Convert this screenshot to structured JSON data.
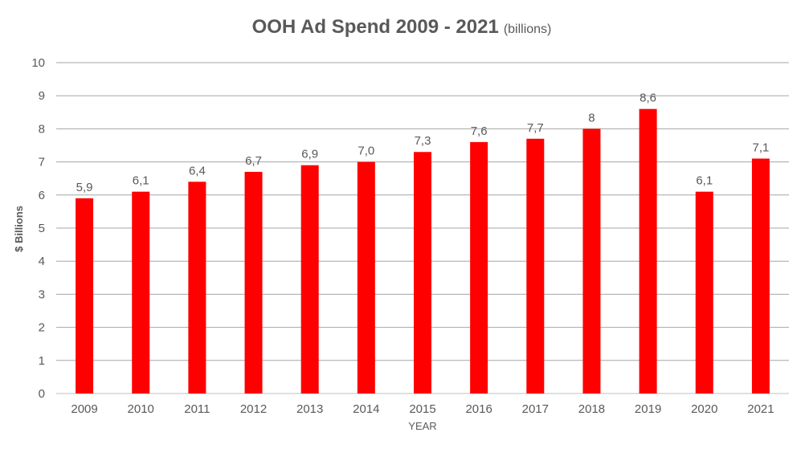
{
  "chart_data": {
    "type": "bar",
    "title": "OOH Ad Spend 2009 - 2021",
    "subtitle": "(billions)",
    "xlabel": "YEAR",
    "ylabel": "$ Billions",
    "ylim": [
      0,
      10
    ],
    "yticks": [
      "0",
      "1",
      "2",
      "3",
      "4",
      "5",
      "6",
      "7",
      "8",
      "9",
      "10"
    ],
    "grid": true,
    "categories": [
      "2009",
      "2010",
      "2011",
      "2012",
      "2013",
      "2014",
      "2015",
      "2016",
      "2017",
      "2018",
      "2019",
      "2020",
      "2021"
    ],
    "values": [
      5.9,
      6.1,
      6.4,
      6.7,
      6.9,
      7.0,
      7.3,
      7.6,
      7.7,
      8.0,
      8.6,
      6.1,
      7.1
    ],
    "data_labels": [
      "5,9",
      "6,1",
      "6,4",
      "6,7",
      "6,9",
      "7,0",
      "7,3",
      "7,6",
      "7,7",
      "8",
      "8,6",
      "6,1",
      "7,1"
    ],
    "bar_color": "#FF0000"
  }
}
